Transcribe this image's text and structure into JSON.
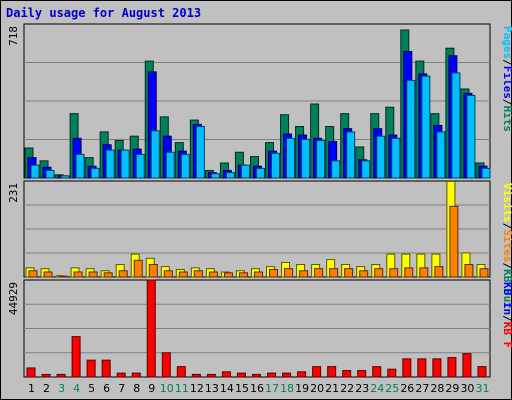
{
  "title": "Daily usage for August 2013",
  "colors": {
    "hits": "#00805c",
    "files": "#0000ff",
    "pages": "#00c0ff",
    "visits": "#ffff00",
    "sites": "#ff8000",
    "kbytes": "#ff0000",
    "bg": "#c0c0c0",
    "grid": "#808080",
    "weekend": "#00805c",
    "weekday": "#000000"
  },
  "chart_data": [
    {
      "type": "bar",
      "panel": "top",
      "title": "Daily usage for August 2013",
      "ylabel_parts": [
        {
          "text": "Pages",
          "color": "#00c0ff"
        },
        {
          "text": "/",
          "color": "#000000"
        },
        {
          "text": "Files",
          "color": "#0000ff"
        },
        {
          "text": "/",
          "color": "#000000"
        },
        {
          "text": "Hits",
          "color": "#00805c"
        }
      ],
      "ymax_label": "718",
      "ylim": [
        0,
        718
      ],
      "categories": [
        "1",
        "2",
        "3",
        "4",
        "5",
        "6",
        "7",
        "8",
        "9",
        "10",
        "11",
        "12",
        "13",
        "14",
        "15",
        "16",
        "17",
        "18",
        "19",
        "20",
        "21",
        "22",
        "23",
        "24",
        "25",
        "26",
        "27",
        "28",
        "29",
        "30",
        "31"
      ],
      "series": [
        {
          "name": "Hits",
          "values": [
            140,
            80,
            15,
            300,
            95,
            215,
            175,
            195,
            545,
            285,
            165,
            270,
            35,
            70,
            120,
            100,
            165,
            295,
            240,
            345,
            240,
            300,
            145,
            300,
            330,
            690,
            545,
            300,
            605,
            415,
            70
          ]
        },
        {
          "name": "Files",
          "values": [
            95,
            50,
            10,
            185,
            55,
            155,
            130,
            135,
            495,
            195,
            125,
            250,
            25,
            35,
            60,
            55,
            125,
            205,
            200,
            185,
            170,
            230,
            85,
            230,
            200,
            590,
            485,
            245,
            570,
            395,
            55
          ]
        },
        {
          "name": "Pages",
          "values": [
            60,
            35,
            10,
            110,
            45,
            130,
            130,
            110,
            220,
            120,
            110,
            240,
            20,
            25,
            60,
            45,
            115,
            185,
            180,
            175,
            80,
            215,
            80,
            195,
            185,
            455,
            475,
            215,
            490,
            385,
            45
          ]
        }
      ],
      "xtick_colors": [
        "#000000",
        "#000000",
        "#00805c",
        "#00805c",
        "#000000",
        "#000000",
        "#000000",
        "#000000",
        "#000000",
        "#00805c",
        "#00805c",
        "#000000",
        "#000000",
        "#000000",
        "#000000",
        "#000000",
        "#00805c",
        "#00805c",
        "#000000",
        "#000000",
        "#000000",
        "#000000",
        "#000000",
        "#00805c",
        "#00805c",
        "#000000",
        "#000000",
        "#000000",
        "#000000",
        "#000000",
        "#00805c"
      ]
    },
    {
      "type": "bar",
      "panel": "middle",
      "ylabel_parts": [
        {
          "text": "Visits",
          "color": "#ffff00"
        },
        {
          "text": "/",
          "color": "#000000"
        },
        {
          "text": "Sites",
          "color": "#ff8000"
        },
        {
          "text": "/",
          "color": "#000000"
        },
        {
          "text": "KB Out",
          "color": "#00805c"
        }
      ],
      "ymax_label": "231",
      "ylim": [
        0,
        231
      ],
      "series": [
        {
          "name": "Visits",
          "values": [
            22,
            20,
            3,
            22,
            20,
            15,
            30,
            55,
            45,
            25,
            18,
            22,
            20,
            12,
            15,
            20,
            25,
            35,
            30,
            30,
            42,
            30,
            25,
            30,
            55,
            55,
            55,
            55,
            230,
            58,
            30
          ]
        },
        {
          "name": "Sites",
          "values": [
            15,
            12,
            2,
            12,
            12,
            10,
            15,
            40,
            30,
            15,
            12,
            15,
            12,
            10,
            10,
            12,
            18,
            20,
            15,
            20,
            20,
            20,
            15,
            20,
            20,
            22,
            22,
            25,
            170,
            30,
            20
          ]
        }
      ]
    },
    {
      "type": "bar",
      "panel": "bottom",
      "ylabel_parts": [
        {
          "text": "KB In",
          "color": "#0000ff"
        },
        {
          "text": "/",
          "color": "#000000"
        },
        {
          "text": "KB F",
          "color": "#ff0000"
        }
      ],
      "ymax_label": "44929",
      "ylim": [
        0,
        44929
      ],
      "series": [
        {
          "name": "KB F",
          "values": [
            4200,
            1200,
            1200,
            18700,
            7800,
            7800,
            1800,
            1800,
            44929,
            11200,
            4800,
            1200,
            1200,
            2400,
            1800,
            1200,
            1800,
            1800,
            2400,
            4800,
            4800,
            3000,
            3000,
            4800,
            3600,
            8400,
            8400,
            8400,
            9000,
            10800,
            4800
          ]
        }
      ]
    }
  ]
}
